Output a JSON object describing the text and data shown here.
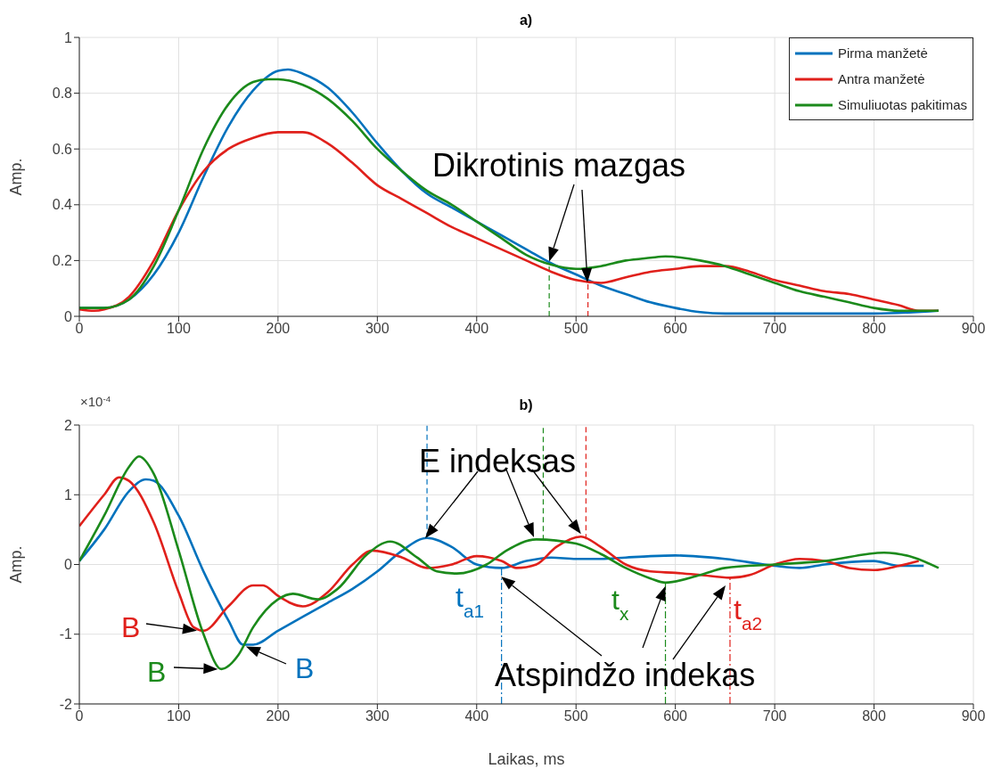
{
  "chart_data": [
    {
      "type": "line",
      "title": "a)",
      "ylabel": "Amp.",
      "xlim": [
        0,
        900
      ],
      "xticks": [
        0,
        100,
        200,
        300,
        400,
        500,
        600,
        700,
        800,
        900
      ],
      "ylim": [
        0,
        1
      ],
      "yticks": [
        0,
        0.2,
        0.4,
        0.6,
        0.8,
        1
      ],
      "grid": true,
      "legend": "top right",
      "series": [
        {
          "name": "Pirma manžetė",
          "color": "#0072bd",
          "x": [
            0,
            25,
            50,
            75,
            100,
            125,
            150,
            175,
            200,
            210,
            225,
            250,
            275,
            300,
            325,
            350,
            375,
            400,
            425,
            450,
            475,
            500,
            525,
            550,
            575,
            600,
            625,
            650,
            700,
            750,
            800,
            865
          ],
          "values": [
            0.03,
            0.03,
            0.06,
            0.15,
            0.3,
            0.5,
            0.68,
            0.81,
            0.88,
            0.885,
            0.87,
            0.82,
            0.73,
            0.62,
            0.52,
            0.44,
            0.39,
            0.34,
            0.29,
            0.24,
            0.19,
            0.15,
            0.11,
            0.08,
            0.05,
            0.03,
            0.015,
            0.01,
            0.01,
            0.01,
            0.01,
            0.02
          ]
        },
        {
          "name": "Antra manžetė",
          "color": "#e0201b",
          "x": [
            0,
            15,
            25,
            50,
            75,
            100,
            125,
            150,
            175,
            200,
            225,
            250,
            275,
            300,
            325,
            350,
            375,
            400,
            425,
            450,
            475,
            500,
            525,
            550,
            575,
            600,
            625,
            650,
            675,
            700,
            725,
            750,
            775,
            800,
            825,
            845,
            865
          ],
          "values": [
            0.025,
            0.02,
            0.025,
            0.07,
            0.2,
            0.38,
            0.52,
            0.6,
            0.64,
            0.66,
            0.66,
            0.62,
            0.55,
            0.47,
            0.42,
            0.37,
            0.32,
            0.28,
            0.24,
            0.2,
            0.16,
            0.13,
            0.12,
            0.14,
            0.16,
            0.17,
            0.18,
            0.18,
            0.16,
            0.13,
            0.11,
            0.09,
            0.08,
            0.06,
            0.04,
            0.02,
            0.02
          ]
        },
        {
          "name": "Simuliuotas pakitimas",
          "color": "#1b8a1b",
          "x": [
            0,
            25,
            50,
            75,
            100,
            125,
            150,
            175,
            190,
            200,
            225,
            250,
            275,
            300,
            325,
            350,
            375,
            400,
            425,
            450,
            475,
            500,
            525,
            550,
            575,
            590,
            625,
            650,
            675,
            700,
            725,
            750,
            775,
            800,
            825,
            865
          ],
          "values": [
            0.03,
            0.03,
            0.06,
            0.18,
            0.38,
            0.6,
            0.76,
            0.84,
            0.85,
            0.85,
            0.83,
            0.78,
            0.7,
            0.6,
            0.52,
            0.45,
            0.4,
            0.34,
            0.28,
            0.22,
            0.185,
            0.17,
            0.18,
            0.2,
            0.21,
            0.215,
            0.2,
            0.18,
            0.15,
            0.12,
            0.09,
            0.07,
            0.05,
            0.03,
            0.02,
            0.02
          ]
        }
      ],
      "ref_lines": [
        {
          "axis": "x",
          "value": 473,
          "color": "#1b8a1b",
          "line_style": "dashed"
        },
        {
          "axis": "x",
          "value": 512,
          "color": "#e0201b",
          "line_style": "dashed"
        }
      ],
      "annotations": [
        {
          "text": "Dikrotinis mazgas",
          "x": 473,
          "y": 0.19
        }
      ]
    },
    {
      "type": "line",
      "title": "b)",
      "ylabel": "Amp.",
      "xlabel": "Laikas, ms",
      "xlim": [
        0,
        900
      ],
      "xticks": [
        0,
        100,
        200,
        300,
        400,
        500,
        600,
        700,
        800,
        900
      ],
      "ylim": [
        -2,
        2
      ],
      "yticks": [
        -2,
        -1,
        0,
        1,
        2
      ],
      "grid": true,
      "series": [
        {
          "color": "#0072bd",
          "x": [
            0,
            25,
            50,
            67,
            75,
            100,
            125,
            150,
            165,
            175,
            200,
            225,
            250,
            275,
            300,
            325,
            350,
            375,
            400,
            425,
            450,
            475,
            500,
            525,
            550,
            575,
            600,
            650,
            700,
            725,
            750,
            800,
            825,
            850
          ],
          "values": [
            0.05,
            0.5,
            1.05,
            1.22,
            1.2,
            0.7,
            -0.1,
            -0.8,
            -1.15,
            -1.15,
            -0.95,
            -0.75,
            -0.55,
            -0.35,
            -0.1,
            0.2,
            0.38,
            0.25,
            0,
            -0.05,
            0.05,
            0.1,
            0.08,
            0.08,
            0.1,
            0.12,
            0.13,
            0.08,
            -0.02,
            -0.05,
            0,
            0.05,
            -0.02,
            -0.02
          ]
        },
        {
          "color": "#e0201b",
          "x": [
            0,
            25,
            40,
            50,
            75,
            100,
            115,
            125,
            150,
            175,
            185,
            200,
            225,
            250,
            275,
            295,
            325,
            350,
            375,
            400,
            425,
            440,
            460,
            480,
            505,
            525,
            550,
            575,
            600,
            625,
            655,
            675,
            700,
            725,
            750,
            775,
            800,
            825,
            845
          ],
          "values": [
            0.55,
            1.0,
            1.25,
            1.2,
            0.6,
            -0.4,
            -0.9,
            -0.95,
            -0.6,
            -0.3,
            -0.3,
            -0.45,
            -0.6,
            -0.4,
            0,
            0.2,
            0.1,
            -0.05,
            0,
            0.12,
            0.05,
            -0.05,
            0,
            0.25,
            0.4,
            0.25,
            0,
            -0.1,
            -0.12,
            -0.15,
            -0.19,
            -0.15,
            0,
            0.08,
            0.05,
            -0.05,
            -0.08,
            -0.02,
            0.05
          ]
        },
        {
          "color": "#1b8a1b",
          "x": [
            0,
            25,
            50,
            60,
            75,
            100,
            125,
            143,
            160,
            175,
            200,
            215,
            240,
            260,
            290,
            313,
            340,
            360,
            380,
            410,
            430,
            460,
            500,
            525,
            550,
            575,
            590,
            625,
            650,
            700,
            750,
            810,
            840,
            865
          ],
          "values": [
            0.05,
            0.7,
            1.4,
            1.55,
            1.3,
            0.2,
            -1.0,
            -1.5,
            -1.3,
            -0.9,
            -0.5,
            -0.42,
            -0.5,
            -0.35,
            0.15,
            0.33,
            0.1,
            -0.1,
            -0.13,
            0,
            0.2,
            0.36,
            0.3,
            0.15,
            -0.05,
            -0.2,
            -0.26,
            -0.15,
            -0.05,
            0,
            0.05,
            0.17,
            0.1,
            -0.05
          ]
        }
      ],
      "ref_lines": [
        {
          "axis": "x",
          "value": 350,
          "color": "#0072bd",
          "line_style": "dashed"
        },
        {
          "axis": "x",
          "value": 425,
          "color": "#0072bd",
          "line_style": "dotted"
        },
        {
          "axis": "x",
          "value": 467,
          "color": "#1b8a1b",
          "line_style": "dashed"
        },
        {
          "axis": "x",
          "value": 590,
          "color": "#1b8a1b",
          "line_style": "dotted"
        },
        {
          "axis": "x",
          "value": 510,
          "color": "#e0201b",
          "line_style": "dashed"
        },
        {
          "axis": "x",
          "value": 655,
          "color": "#e0201b",
          "line_style": "dotted"
        }
      ],
      "annotations": [
        "×10$^{-4}$",
        {
          "text": "E indeksas",
          "x": 505,
          "y": 0.4
        },
        {
          "text": "B",
          "x": 122,
          "y": -0.95
        },
        {
          "text": "B",
          "x": 143,
          "y": -1.5
        },
        {
          "text": "B",
          "x": 165,
          "y": -1.15
        },
        "t$_{a1}$",
        "t$_{x}$",
        "t$_{a2}$",
        {
          "text": "Atspindžo indekas",
          "x": 590,
          "y": -0.26
        }
      ]
    }
  ]
}
